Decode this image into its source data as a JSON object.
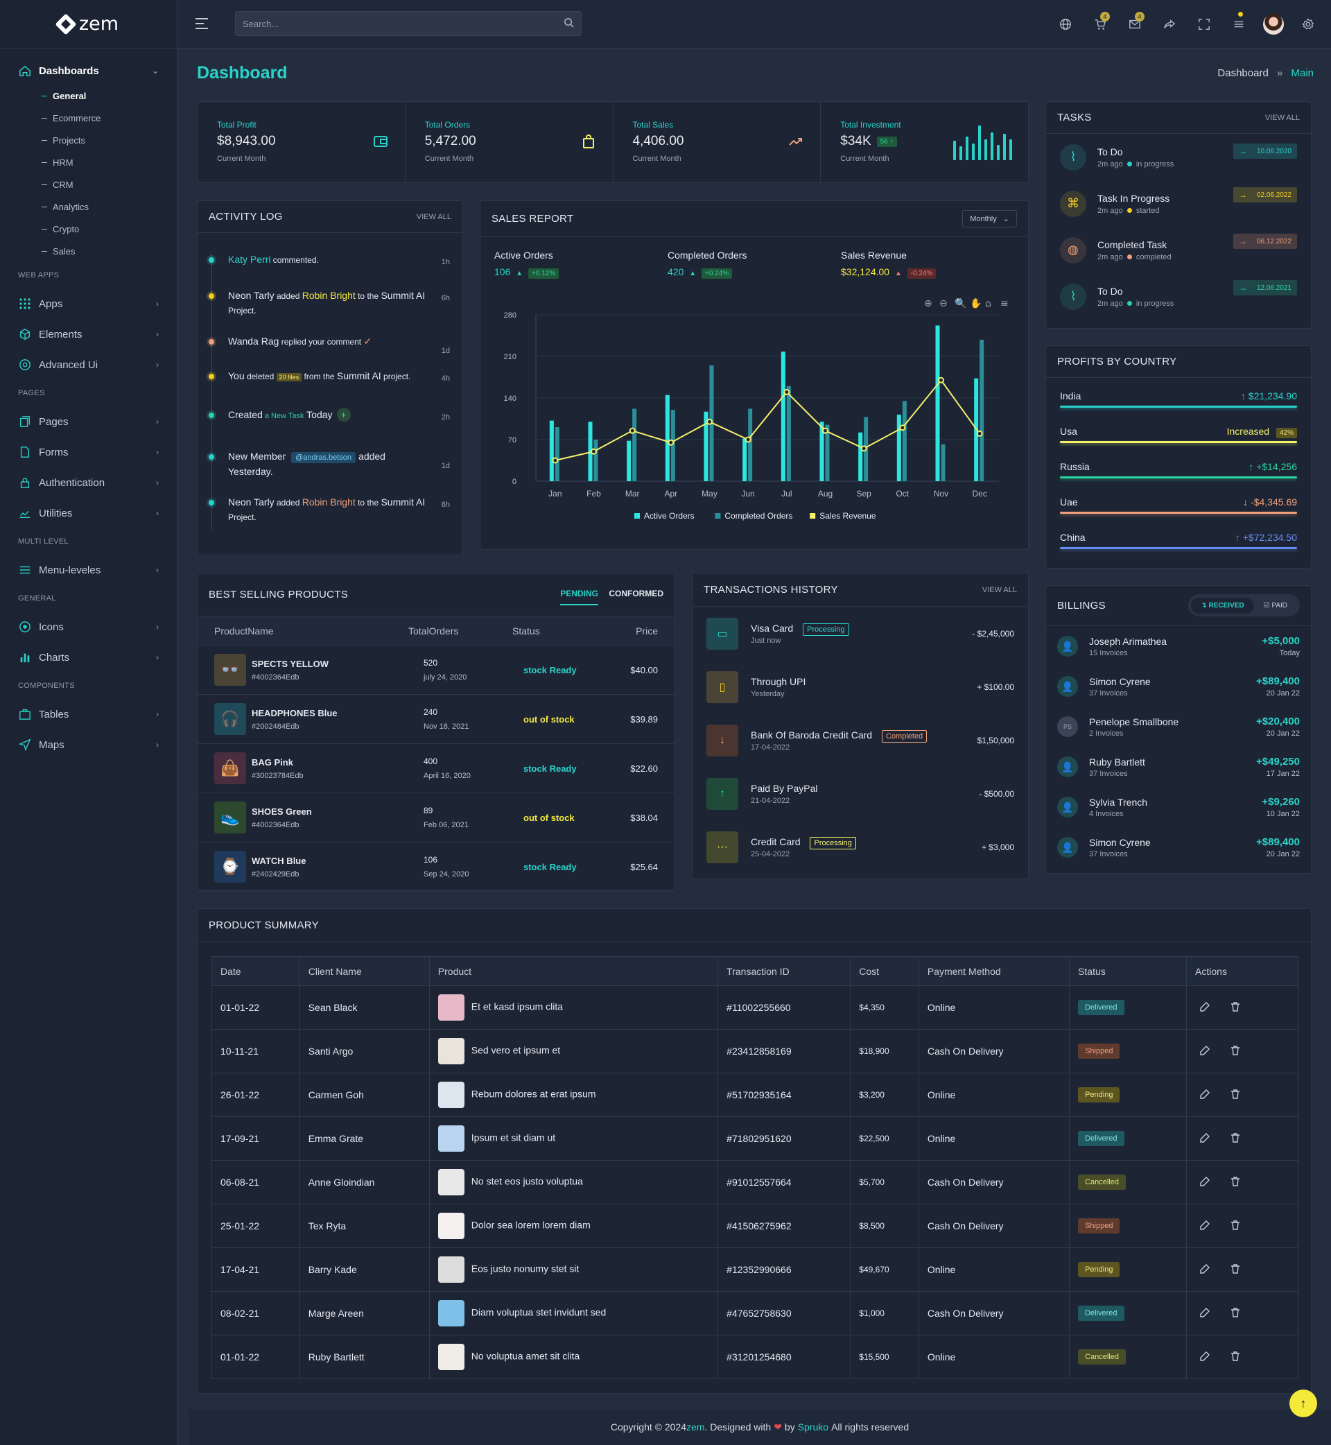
{
  "brand": "zem",
  "search": {
    "placeholder": "Search..."
  },
  "header": {
    "cart_count": "4",
    "mail_count": "4"
  },
  "sidebar": {
    "dashboards": "Dashboards",
    "dash_items": [
      "General",
      "Ecommerce",
      "Projects",
      "HRM",
      "CRM",
      "Analytics",
      "Crypto",
      "Sales"
    ],
    "cat_webapps": "WEB APPS",
    "apps": "Apps",
    "elements": "Elements",
    "advanced": "Advanced Ui",
    "cat_pages": "PAGES",
    "pages": "Pages",
    "forms": "Forms",
    "auth": "Authentication",
    "utilities": "Utilities",
    "cat_multi": "MULTI LEVEL",
    "menu": "Menu-leveles",
    "cat_general": "GENERAL",
    "icons": "Icons",
    "charts": "Charts",
    "cat_components": "COMPONENTS",
    "tables": "Tables",
    "maps": "Maps"
  },
  "page": {
    "title": "Dashboard",
    "crumb1": "Dashboard",
    "crumb_sep": "»",
    "crumb2": "Main"
  },
  "stats": [
    {
      "label": "Total Profit",
      "value": "$8,943.00",
      "sub": "Current Month",
      "icon": "wallet-icon"
    },
    {
      "label": "Total Orders",
      "value": "5,472.00",
      "sub": "Current Month",
      "icon": "bag-icon"
    },
    {
      "label": "Total Sales",
      "value": "4,406.00",
      "sub": "Current Month",
      "icon": "trend-icon"
    },
    {
      "label": "Total Investment",
      "value": "$34K",
      "sub": "Current Month",
      "badge": "56",
      "icon": "bars-icon"
    }
  ],
  "activity": {
    "title": "ACTIVITY LOG",
    "viewall": "VIEW ALL",
    "items": [
      {
        "a": "Katy Perri",
        "b": " commented.",
        "time": "1h"
      },
      {
        "a": "Neon Tarly",
        "b": " added ",
        "c": "Robin Bright",
        "d": " to the ",
        "e": "Summit AI",
        "f": "Project.",
        "time": "6h"
      },
      {
        "a": "Wanda Rag",
        "b": " replied your comment ",
        "time": "1d"
      },
      {
        "a": "You",
        "b": " deleted ",
        "c": "20 files",
        "d": " from the ",
        "e": "Summit AI",
        "f": " project.",
        "time": "4h"
      },
      {
        "a": "Created",
        "b": " a New Task",
        "c": " Today",
        "time": "2h"
      },
      {
        "a": "New Member",
        "b": "@andras.betson",
        "c": "added",
        "d": "Yesterday.",
        "time": "1d"
      },
      {
        "a": "Neon Tarly",
        "b": " added ",
        "c": "Robin Bright",
        "d": " to the ",
        "e": "Summit AI",
        "f": "Project.",
        "time": "6h"
      }
    ]
  },
  "sales": {
    "title": "SALES REPORT",
    "select": "Monthly",
    "kpi": [
      {
        "label": "Active Orders",
        "value": "106",
        "badge": "+0.12%"
      },
      {
        "label": "Completed Orders",
        "value": "420",
        "badge": "+0.24%"
      },
      {
        "label": "Sales Revenue",
        "value": "$32,124.00",
        "badge": "-0.24%"
      }
    ]
  },
  "chart_data": {
    "type": "bar",
    "categories": [
      "Jan",
      "Feb",
      "Mar",
      "Apr",
      "May",
      "Jun",
      "Jul",
      "Aug",
      "Sep",
      "Oct",
      "Nov",
      "Dec"
    ],
    "series": [
      {
        "name": "Active Orders",
        "type": "bar",
        "color": "#2ee6e0",
        "values": [
          102,
          100,
          68,
          145,
          117,
          72,
          218,
          100,
          82,
          112,
          262,
          173
        ]
      },
      {
        "name": "Completed Orders",
        "type": "bar",
        "color": "#2a8f98",
        "values": [
          91,
          70,
          122,
          120,
          195,
          122,
          160,
          95,
          108,
          135,
          62,
          238
        ]
      },
      {
        "name": "Sales Revenue",
        "type": "line",
        "color": "#f5f06a",
        "values": [
          35,
          50,
          85,
          65,
          100,
          70,
          150,
          85,
          55,
          90,
          170,
          80
        ]
      }
    ],
    "yticks": [
      0,
      70,
      140,
      210,
      280
    ],
    "ylim": [
      0,
      280
    ]
  },
  "tasks": {
    "title": "TASKS",
    "viewall": "VIEW ALL",
    "items": [
      {
        "name": "To Do",
        "time": "2m ago",
        "state": "in progress",
        "date": "10.06.2020",
        "dot": "#2ad3c9",
        "icon": "pulse-icon",
        "color": "#2ad3c9"
      },
      {
        "name": "Task In Progress",
        "time": "2m ago",
        "state": "started",
        "date": "02.06.2022",
        "dot": "#f5d020",
        "icon": "command-icon",
        "color": "#f5d020"
      },
      {
        "name": "Completed Task",
        "time": "2m ago",
        "state": "completed",
        "date": "06.12.2022",
        "dot": "#f0a07a",
        "icon": "globe-icon",
        "color": "#f0a07a"
      },
      {
        "name": "To Do",
        "time": "2m ago",
        "state": "in progress",
        "date": "12.06.2021",
        "dot": "#2ad39f",
        "icon": "pulse-icon",
        "color": "#2ad39f"
      }
    ]
  },
  "profits": {
    "title": "PROFITS BY COUNTRY",
    "items": [
      {
        "name": "India",
        "value": "$21,234.90",
        "color": "#2ad3c9",
        "arrow": "↑"
      },
      {
        "name": "Usa",
        "value": "Increased",
        "badge": "42%",
        "color": "#f5f06a",
        "arrow": ""
      },
      {
        "name": "Russia",
        "value": "+$14,256",
        "color": "#2ad39f",
        "arrow": "↑"
      },
      {
        "name": "Uae",
        "value": "-$4,345.69",
        "color": "#f0a07a",
        "arrow": "↓"
      },
      {
        "name": "China",
        "value": "+$72,234.50",
        "color": "#6a8cf0",
        "arrow": "↑"
      }
    ]
  },
  "best": {
    "title": "BEST SELLING PRODUCTS",
    "tab1": "PENDING",
    "tab2": "CONFORMED",
    "head": [
      "ProductName",
      "TotalOrders",
      "Status",
      "Price"
    ],
    "rows": [
      {
        "name": "SPECTS YELLOW",
        "id": "#4002364Edb",
        "orders": "520",
        "date": "july 24, 2020",
        "status": "stock Ready",
        "price": "$40.00",
        "bg": "#4a4436",
        "emoji": "👓"
      },
      {
        "name": "HEADPHONES Blue",
        "id": "#2002484Edb",
        "orders": "240",
        "date": "Nov 18, 2021",
        "status": "out of stock",
        "price": "$39.89",
        "bg": "#1f4a5a",
        "emoji": "🎧"
      },
      {
        "name": "BAG Pink",
        "id": "#30023784Edb",
        "orders": "400",
        "date": "April 16, 2020",
        "status": "stock Ready",
        "price": "$22.60",
        "bg": "#4a2e40",
        "emoji": "👜"
      },
      {
        "name": "SHOES Green",
        "id": "#4002364Edb",
        "orders": "89",
        "date": "Feb 06, 2021",
        "status": "out of stock",
        "price": "$38.04",
        "bg": "#2e4a2e",
        "emoji": "👟"
      },
      {
        "name": "WATCH Blue",
        "id": "#2402429Edb",
        "orders": "106",
        "date": "Sep 24, 2020",
        "status": "stock Ready",
        "price": "$25.64",
        "bg": "#1f3a5a",
        "emoji": "⌚"
      }
    ]
  },
  "trans": {
    "title": "TRANSACTIONS HISTORY",
    "viewall": "VIEW ALL",
    "items": [
      {
        "name": "Visa Card",
        "badge": "Processing",
        "sub": "Just now",
        "amt": "- $2,45,000",
        "bg": "#1f4a52",
        "fg": "#2ad3c9",
        "icon": "▭",
        "bcol": "#2ad3c9"
      },
      {
        "name": "Through UPI",
        "badge": "",
        "sub": "Yesterday",
        "amt": "+ $100.00",
        "bg": "#4a4436",
        "fg": "#f5d020",
        "icon": "▯",
        "bcol": ""
      },
      {
        "name": "Bank Of Baroda Credit Card",
        "badge": "Completed",
        "sub": "17-04-2022",
        "amt": "$1,50,000",
        "bg": "#4a3530",
        "fg": "#f0a07a",
        "icon": "↓",
        "bcol": "#f0a07a"
      },
      {
        "name": "Paid By PayPal",
        "badge": "",
        "sub": "21-04-2022",
        "amt": "- $500.00",
        "bg": "#1f4a3a",
        "fg": "#2ad39f",
        "icon": "↑",
        "bcol": ""
      },
      {
        "name": "Credit Card",
        "badge": "Processing",
        "sub": "25-04-2022",
        "amt": "+ $3,000",
        "bg": "#44482e",
        "fg": "#f5f06a",
        "icon": "···",
        "bcol": "#f5f06a"
      }
    ]
  },
  "billings": {
    "title": "BILLINGS",
    "tab1": "RECEIVED",
    "tab2": "PAID",
    "items": [
      {
        "name": "Joseph Arimathea",
        "sub": "15 Invoices",
        "amt": "+$5,000",
        "date": "Today",
        "av": ""
      },
      {
        "name": "Simon Cyrene",
        "sub": "37 Invoices",
        "amt": "+$89,400",
        "date": "20 Jan 22",
        "av": ""
      },
      {
        "name": "Penelope Smallbone",
        "sub": "2 Invoices",
        "amt": "+$20,400",
        "date": "20 Jan 22",
        "av": "PS"
      },
      {
        "name": "Ruby Bartlett",
        "sub": "37 Invoices",
        "amt": "+$49,250",
        "date": "17 Jan 22",
        "av": ""
      },
      {
        "name": "Sylvia Trench",
        "sub": "4 Invoices",
        "amt": "+$9,260",
        "date": "10 Jan 22",
        "av": ""
      },
      {
        "name": "Simon Cyrene",
        "sub": "37 Invoices",
        "amt": "+$89,400",
        "date": "20 Jan 22",
        "av": ""
      }
    ]
  },
  "summary": {
    "title": "PRODUCT SUMMARY",
    "head": [
      "Date",
      "Client Name",
      "Product",
      "Transaction ID",
      "Cost",
      "Payment Method",
      "Status",
      "Actions"
    ],
    "rows": [
      {
        "date": "01-01-22",
        "client": "Sean Black",
        "product": "Et et kasd ipsum clita",
        "tid": "#11002255660",
        "cost": "$4,350",
        "pay": "Online",
        "status": "Delivered",
        "tb": "#e6b8c8"
      },
      {
        "date": "10-11-21",
        "client": "Santi Argo",
        "product": "Sed vero et ipsum et",
        "tid": "#23412858169",
        "cost": "$18,900",
        "pay": "Cash On Delivery",
        "status": "Shipped",
        "tb": "#e8e4dc"
      },
      {
        "date": "26-01-22",
        "client": "Carmen Goh",
        "product": "Rebum dolores at erat ipsum",
        "tid": "#51702935164",
        "cost": "$3,200",
        "pay": "Online",
        "status": "Pending",
        "tb": "#dde6ee"
      },
      {
        "date": "17-09-21",
        "client": "Emma Grate",
        "product": "Ipsum et sit diam ut",
        "tid": "#71802951620",
        "cost": "$22,500",
        "pay": "Online",
        "status": "Delivered",
        "tb": "#b8d4f0"
      },
      {
        "date": "06-08-21",
        "client": "Anne Gloindian",
        "product": "No stet eos justo voluptua",
        "tid": "#91012557664",
        "cost": "$5,700",
        "pay": "Cash On Delivery",
        "status": "Cancelled",
        "tb": "#e8e8e8"
      },
      {
        "date": "25-01-22",
        "client": "Tex Ryta",
        "product": "Dolor sea lorem lorem diam",
        "tid": "#41506275962",
        "cost": "$8,500",
        "pay": "Cash On Delivery",
        "status": "Shipped",
        "tb": "#f4f0ee"
      },
      {
        "date": "17-04-21",
        "client": "Barry Kade",
        "product": "Eos justo nonumy stet sit",
        "tid": "#12352990666",
        "cost": "$49,670",
        "pay": "Online",
        "status": "Pending",
        "tb": "#dcdcdc"
      },
      {
        "date": "08-02-21",
        "client": "Marge Areen",
        "product": "Diam voluptua stet invidunt sed",
        "tid": "#47652758630",
        "cost": "$1,000",
        "pay": "Cash On Delivery",
        "status": "Delivered",
        "tb": "#7fc0e8"
      },
      {
        "date": "01-01-22",
        "client": "Ruby Bartlett",
        "product": "No voluptua amet sit clita",
        "tid": "#31201254680",
        "cost": "$15,500",
        "pay": "Online",
        "status": "Cancelled",
        "tb": "#f0ece8"
      }
    ]
  },
  "footer": {
    "pre": "Copyright © 2024 ",
    "brand": "zem",
    "mid": ". Designed with ",
    "heart": "❤",
    "by": " by ",
    "author": "Spruko",
    "post": " All rights reserved"
  }
}
